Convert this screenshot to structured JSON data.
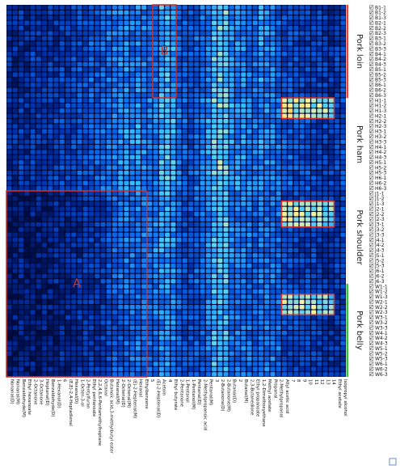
{
  "chart_data": {
    "type": "heatmap",
    "title": "",
    "xlabel": "",
    "ylabel": "",
    "colormap": [
      "#000a3c",
      "#0030a8",
      "#0a6cf0",
      "#3cc8ff",
      "#f4f4a0",
      "#ffb23c"
    ],
    "x_labels": [
      "Nonanal(D)",
      "Nonanal(M)",
      "Benzaldehyde(M)",
      "Ethyl hexanoate",
      "2-Octanone",
      "3-Octanone",
      "Heptanal(D)",
      "Benzaldehyde(D)",
      "1-Hexanol(D)",
      "6",
      "(E,E)-2,4-Heptadienal",
      "Hexanal(D)",
      "1-Octen-3-ol",
      "2-Pentylfuran",
      "Ethyl pentanoate",
      "2,2,4,6,6-Pentamethylheptane",
      "Octanal",
      "Butanoic acid,3-methylbutyl ester",
      "Hexanal(M)",
      "2-Octenal(D)",
      "2-Octenal(M)",
      "(E)-2-Heptenal(M)",
      "Hexanal",
      "Ethylbenzene",
      "5",
      "(E)-2-Heptenal(D)",
      "Acetoin",
      "4",
      "Ethyl butyrate",
      "2-Pentanone",
      "1-Pentanol",
      "1-Pentanol(M)",
      "Pentanal(D)",
      "2-Methylpropanoic acid",
      "Pentanal(M)",
      "3",
      "2-Butanone(D)",
      "2-Butanone(M)",
      "Butanal(D)",
      "2",
      "Butanal(M)",
      "2,3-Butanedione",
      "Ethyl propanoate",
      "1,2-Dimethoxyethane",
      "Methyl acetate",
      "Propanal",
      "2-Methylpropanal",
      "Allyl acetic acid",
      "7",
      "8",
      "9",
      "10",
      "11",
      "12",
      "13",
      "14",
      "Ethyl acetate",
      "Isopropyl alcohol"
    ],
    "y_labels": [
      "B1-1",
      "B1-2",
      "B1-3",
      "B2-1",
      "B2-2",
      "B2-3",
      "B3-1",
      "B3-2",
      "B3-3",
      "B4-1",
      "B4-2",
      "B4-3",
      "B5-1",
      "B5-2",
      "B5-3",
      "B6-1",
      "B6-2",
      "B6-3",
      "H1-1",
      "H1-2",
      "H1-3",
      "H2-1",
      "H2-2",
      "H2-3",
      "H3-1",
      "H3-2",
      "H3-3",
      "H4-1",
      "H4-2",
      "H4-3",
      "H5-1",
      "H5-2",
      "H5-3",
      "H6-1",
      "H6-2",
      "H6-3",
      "J1-1",
      "J1-2",
      "J1-3",
      "J2-1",
      "J2-2",
      "J2-3",
      "J3-1",
      "J3-2",
      "J3-3",
      "J4-1",
      "J4-2",
      "J4-3",
      "J5-1",
      "J5-2",
      "J5-3",
      "J6-1",
      "J6-2",
      "J6-3",
      "W1-1",
      "W1-2",
      "W1-3",
      "W2-1",
      "W2-2",
      "W2-3",
      "W3-1",
      "W3-2",
      "W3-3",
      "W4-1",
      "W4-2",
      "W4-3",
      "W5-1",
      "W5-2",
      "W5-3",
      "W6-1",
      "W6-2",
      "W6-3"
    ],
    "groups": [
      {
        "name": "Pork loin",
        "rows": [
          0,
          17
        ],
        "color": "#e8463a"
      },
      {
        "name": "Pork ham",
        "rows": [
          18,
          35
        ],
        "color": "#f0f0f0"
      },
      {
        "name": "Pork shoulder",
        "rows": [
          36,
          53
        ],
        "color": "#f0f0f0"
      },
      {
        "name": "Pork belly",
        "rows": [
          54,
          71
        ],
        "color": "#39c43d"
      }
    ],
    "group_profiles": [
      [
        0.18,
        0.16,
        0.2,
        0.15,
        0.22,
        0.2,
        0.2,
        0.22,
        0.2,
        0.26,
        0.22,
        0.28,
        0.3,
        0.3,
        0.35,
        0.32,
        0.35,
        0.38,
        0.42,
        0.45,
        0.45,
        0.4,
        0.45,
        0.42,
        0.4,
        0.38,
        0.55,
        0.55,
        0.5,
        0.35,
        0.32,
        0.3,
        0.38,
        0.4,
        0.45,
        0.6,
        0.62,
        0.62,
        0.48,
        0.45,
        0.45,
        0.42,
        0.4,
        0.5,
        0.45,
        0.42,
        0.35,
        0.3,
        0.3,
        0.28,
        0.25,
        0.25,
        0.25,
        0.25,
        0.22,
        0.2,
        0.25,
        0.28
      ],
      [
        0.2,
        0.18,
        0.22,
        0.18,
        0.22,
        0.2,
        0.22,
        0.2,
        0.25,
        0.28,
        0.25,
        0.28,
        0.32,
        0.32,
        0.35,
        0.35,
        0.38,
        0.4,
        0.45,
        0.48,
        0.5,
        0.48,
        0.5,
        0.45,
        0.42,
        0.42,
        0.55,
        0.58,
        0.55,
        0.4,
        0.35,
        0.32,
        0.4,
        0.42,
        0.5,
        0.62,
        0.65,
        0.62,
        0.5,
        0.48,
        0.48,
        0.45,
        0.42,
        0.48,
        0.45,
        0.45,
        0.4,
        0.35,
        0.35,
        0.32,
        0.3,
        0.3,
        0.28,
        0.28,
        0.25,
        0.25,
        0.28,
        0.3
      ],
      [
        0.1,
        0.1,
        0.12,
        0.1,
        0.12,
        0.12,
        0.12,
        0.12,
        0.15,
        0.15,
        0.15,
        0.18,
        0.18,
        0.2,
        0.22,
        0.22,
        0.25,
        0.3,
        0.35,
        0.38,
        0.42,
        0.4,
        0.42,
        0.4,
        0.4,
        0.45,
        0.5,
        0.52,
        0.48,
        0.35,
        0.3,
        0.3,
        0.35,
        0.38,
        0.45,
        0.55,
        0.58,
        0.6,
        0.45,
        0.42,
        0.42,
        0.4,
        0.35,
        0.42,
        0.4,
        0.4,
        0.38,
        0.3,
        0.3,
        0.28,
        0.25,
        0.25,
        0.25,
        0.22,
        0.2,
        0.2,
        0.25,
        0.28
      ],
      [
        0.1,
        0.1,
        0.12,
        0.1,
        0.12,
        0.1,
        0.12,
        0.12,
        0.12,
        0.15,
        0.14,
        0.15,
        0.18,
        0.18,
        0.2,
        0.2,
        0.22,
        0.28,
        0.32,
        0.35,
        0.38,
        0.38,
        0.4,
        0.38,
        0.38,
        0.4,
        0.45,
        0.48,
        0.45,
        0.35,
        0.3,
        0.3,
        0.35,
        0.35,
        0.42,
        0.55,
        0.55,
        0.55,
        0.42,
        0.4,
        0.4,
        0.38,
        0.35,
        0.4,
        0.42,
        0.42,
        0.38,
        0.3,
        0.3,
        0.28,
        0.25,
        0.25,
        0.25,
        0.22,
        0.2,
        0.2,
        0.22,
        0.25
      ]
    ],
    "highlights": [
      {
        "label": "A",
        "cols": [
          0,
          23
        ],
        "rows": [
          36,
          71
        ]
      },
      {
        "label": "B",
        "cols": [
          25,
          28
        ],
        "rows": [
          0,
          17
        ]
      },
      {
        "label": "",
        "cols": [
          47,
          55
        ],
        "rows": [
          18,
          21
        ]
      },
      {
        "label": "",
        "cols": [
          47,
          55
        ],
        "rows": [
          38,
          42
        ]
      },
      {
        "label": "",
        "cols": [
          47,
          55
        ],
        "rows": [
          56,
          59
        ]
      }
    ]
  }
}
